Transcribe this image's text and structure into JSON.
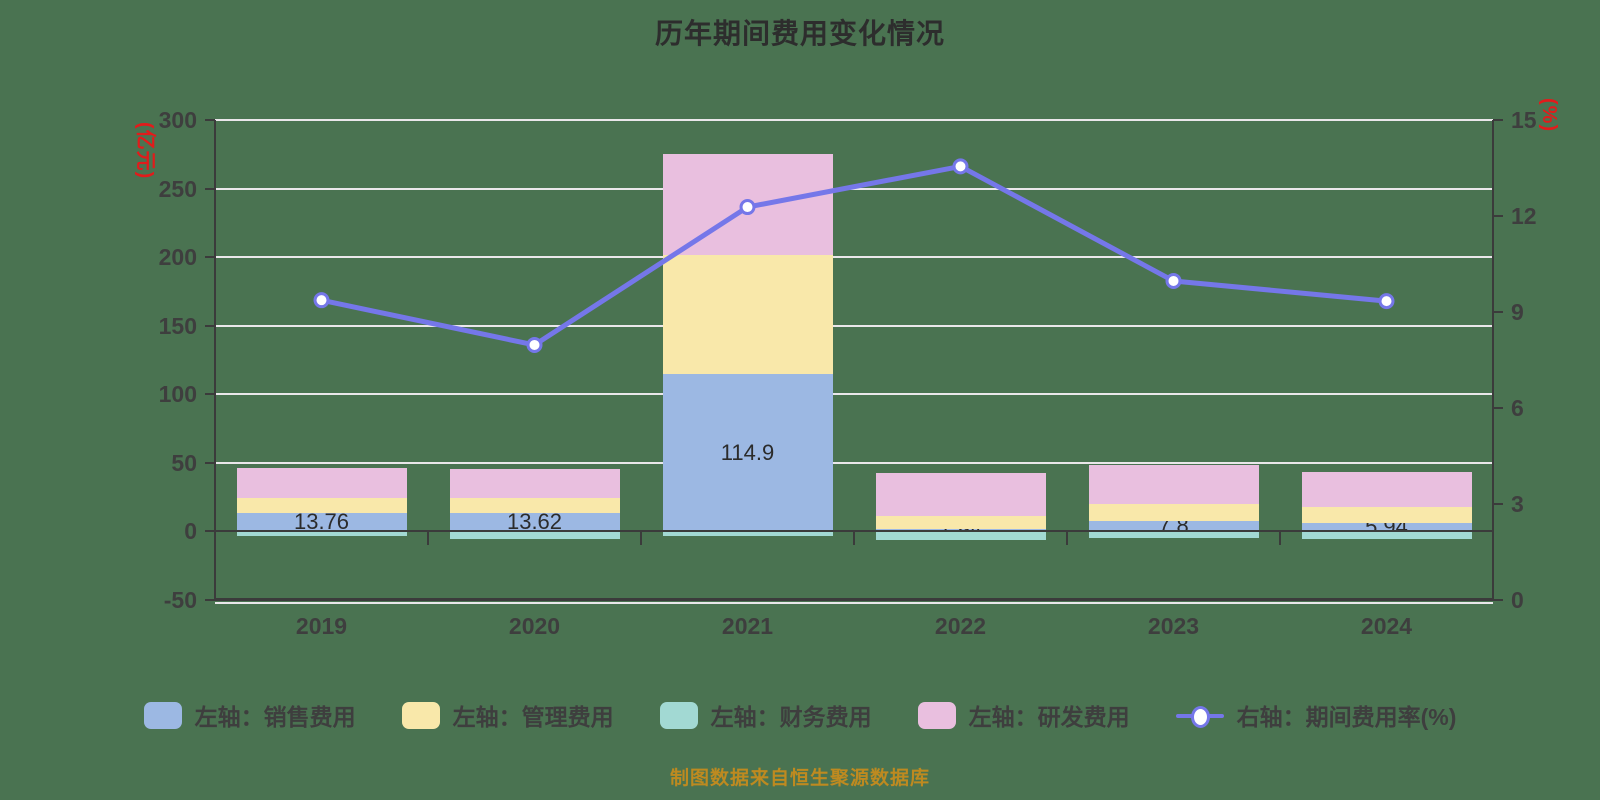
{
  "title": "历年期间费用变化情况",
  "source_note": "制图数据来自恒生聚源数据库",
  "left_axis": {
    "unit": "(亿元)",
    "min": -50,
    "max": 300,
    "ticks": [
      300,
      250,
      200,
      150,
      100,
      50,
      0,
      -50
    ]
  },
  "right_axis": {
    "unit": "(%)",
    "min": 0,
    "max": 15,
    "ticks": [
      15,
      12,
      9,
      6,
      3,
      0
    ]
  },
  "colors": {
    "background": "#4A7351",
    "grid": "#EAE7EA",
    "axis": "#3B3B3B",
    "text": "#3E3E3E",
    "unit_red": "#E21B1B",
    "title": "#2D2D2D",
    "source": "#BE8A20",
    "line": "#7577E9"
  },
  "chart_data": {
    "type": "bar",
    "subtype": "stacked-bars-with-line-overlay",
    "categories": [
      "2019",
      "2020",
      "2021",
      "2022",
      "2023",
      "2024"
    ],
    "left_ylim": [
      -50,
      300
    ],
    "right_ylim": [
      0,
      15
    ],
    "grid": "on",
    "legend_position": "bottom",
    "series": [
      {
        "name": "左轴：销售费用",
        "type": "bar",
        "stack": true,
        "color": "#9CB8E3",
        "values": [
          13.76,
          13.62,
          114.9,
          1.94,
          7.8,
          5.94
        ],
        "labels": [
          "13.76",
          "13.62",
          "114.9",
          "1.94",
          "7.8",
          "5.94"
        ]
      },
      {
        "name": "左轴：管理费用",
        "type": "bar",
        "stack": true,
        "color": "#F9E8AA",
        "values": [
          10.64,
          10.9,
          86.6,
          9.3,
          12.2,
          11.9
        ]
      },
      {
        "name": "左轴：财务费用",
        "type": "bar",
        "stack": true,
        "color": "#A2D9D3",
        "values": [
          -3.4,
          -5.5,
          -3.4,
          -6.3,
          -4.8,
          -5.5
        ]
      },
      {
        "name": "左轴：研发费用",
        "type": "bar",
        "stack": true,
        "color": "#E9BFDF",
        "values": [
          21.8,
          21.3,
          73.5,
          31.4,
          28.4,
          25.5
        ]
      },
      {
        "name": "右轴：期间费用率(%)",
        "type": "line",
        "axis": "right",
        "color": "#7577E9",
        "values": [
          9.37,
          7.97,
          12.28,
          13.55,
          9.97,
          9.34
        ]
      }
    ]
  }
}
